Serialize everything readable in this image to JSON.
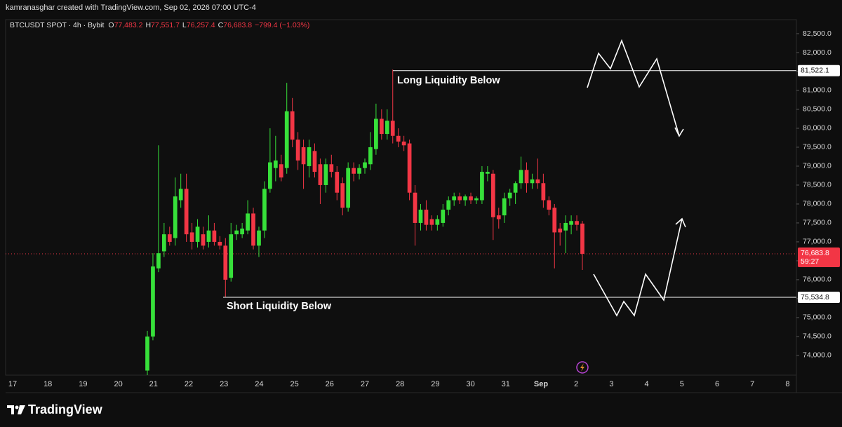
{
  "chart_data": {
    "type": "candlestick",
    "header": "kamranasghar created with TradingView.com, Sep 02, 2026 07:00 UTC-4",
    "symbol": "BTCUSDT SPOT · 4h · Bybit",
    "ohlc_legend": [
      {
        "key": "O",
        "text": "77,483.2"
      },
      {
        "key": "H",
        "text": "77,551.7"
      },
      {
        "key": "L",
        "text": "76,257.4"
      },
      {
        "key": "C",
        "text": "76,683.8"
      }
    ],
    "change": "−799.4 (−1.03%)",
    "up_color": "#37e03a",
    "down_color": "#f23645",
    "open": [
      73600,
      74500,
      76300,
      76750,
      77200,
      77100,
      78100,
      78400,
      77250,
      77000,
      77200,
      77000,
      77300,
      77000,
      76900,
      76050,
      77200,
      77200,
      77300,
      77750,
      76900,
      77300,
      78400,
      78950,
      79050,
      78950,
      80450,
      79700,
      79500,
      79000,
      79400,
      79050,
      78500,
      79050,
      78850,
      78550,
      77900,
      78950,
      78800,
      78950,
      79050,
      79450,
      80250,
      79850,
      80200,
      79800,
      79650,
      79600,
      78300,
      77500,
      77850,
      77600,
      77450,
      77500,
      77850,
      78100,
      78200,
      78100,
      78200,
      78100,
      78100,
      78800,
      78800,
      77700,
      77700,
      78150,
      78300,
      78550,
      78900,
      78550,
      78650,
      78550,
      78100,
      77900,
      77350,
      77300,
      77450,
      77550,
      77483.2
    ],
    "high": [
      74650,
      76700,
      79550,
      77500,
      77400,
      78700,
      78800,
      78800,
      77500,
      77600,
      77400,
      77700,
      77500,
      77150,
      77100,
      77500,
      77450,
      77500,
      78100,
      77900,
      77400,
      78600,
      80000,
      79800,
      79300,
      81200,
      80800,
      79900,
      79700,
      79700,
      79600,
      79200,
      79200,
      79300,
      79000,
      78700,
      79100,
      79100,
      79050,
      79200,
      79900,
      80650,
      80500,
      80500,
      81550,
      80000,
      79800,
      79700,
      78500,
      78000,
      78100,
      77700,
      77700,
      78000,
      78200,
      78300,
      78300,
      78250,
      78300,
      78200,
      79000,
      79000,
      78900,
      77900,
      78300,
      78400,
      78600,
      79250,
      79100,
      78800,
      79200,
      78800,
      78200,
      78000,
      77500,
      77700,
      77700,
      77700,
      77551.7
    ],
    "low": [
      73400,
      74400,
      76200,
      76600,
      76900,
      76900,
      77900,
      77000,
      76800,
      76850,
      76800,
      76850,
      76900,
      76800,
      75550,
      75950,
      77050,
      77100,
      77200,
      76800,
      76600,
      77100,
      78300,
      78600,
      78600,
      78800,
      79500,
      78900,
      78400,
      78700,
      78700,
      78000,
      78300,
      78700,
      78100,
      77700,
      77800,
      78600,
      78650,
      78800,
      78900,
      79300,
      79700,
      79700,
      79600,
      79500,
      79400,
      78100,
      76900,
      77300,
      77300,
      77300,
      77300,
      77400,
      77700,
      77950,
      78000,
      77950,
      78000,
      78000,
      78000,
      78600,
      77050,
      77350,
      77500,
      77950,
      78000,
      78400,
      78300,
      78400,
      78400,
      77900,
      77700,
      76300,
      76900,
      76700,
      77200,
      77300,
      76257.4
    ],
    "close": [
      74500,
      76350,
      76700,
      77200,
      77000,
      78200,
      78400,
      77200,
      77000,
      77400,
      76900,
      77300,
      77000,
      76900,
      76000,
      77200,
      77300,
      77350,
      77750,
      76900,
      77300,
      78400,
      79100,
      79150,
      78700,
      80450,
      79700,
      79150,
      79050,
      79500,
      78850,
      78500,
      79050,
      78850,
      78300,
      77900,
      78950,
      78800,
      78950,
      79100,
      79500,
      80250,
      79850,
      80200,
      79800,
      79650,
      79550,
      78300,
      77500,
      77850,
      77450,
      77450,
      77600,
      77850,
      78100,
      78200,
      78100,
      78200,
      78100,
      78150,
      78850,
      78850,
      77650,
      77600,
      78150,
      78300,
      78550,
      78900,
      78550,
      78650,
      78550,
      78100,
      77850,
      77250,
      77250,
      77500,
      77550,
      77450,
      76683.8
    ],
    "ylim": [
      73480,
      82870
    ],
    "yticks": [
      {
        "value": 74000,
        "label": "74,000.0"
      },
      {
        "value": 74500,
        "label": "74,500.0"
      },
      {
        "value": 75000,
        "label": "75,000.0"
      },
      {
        "value": 75500,
        "label": "75,500.0"
      },
      {
        "value": 76000,
        "label": "76,000.0"
      },
      {
        "value": 76500,
        "label": "76,500.0"
      },
      {
        "value": 77000,
        "label": "77,000.0"
      },
      {
        "value": 77500,
        "label": "77,500.0"
      },
      {
        "value": 78000,
        "label": "78,000.0"
      },
      {
        "value": 78500,
        "label": "78,500.0"
      },
      {
        "value": 79000,
        "label": "79,000.0"
      },
      {
        "value": 79500,
        "label": "79,500.0"
      },
      {
        "value": 80000,
        "label": "80,000.0"
      },
      {
        "value": 80500,
        "label": "80,500.0"
      },
      {
        "value": 81000,
        "label": "81,000.0"
      },
      {
        "value": 81500,
        "label": "81,500.0"
      },
      {
        "value": 82000,
        "label": "82,000.0"
      },
      {
        "value": 82500,
        "label": "82,500.0"
      }
    ],
    "xticks": [
      "17",
      "18",
      "19",
      "20",
      "21",
      "22",
      "23",
      "24",
      "25",
      "26",
      "27",
      "28",
      "29",
      "30",
      "31",
      "Sep",
      "2",
      "3",
      "4",
      "5",
      "6",
      "7",
      "8"
    ],
    "levels": [
      {
        "value": 81522.1,
        "label": "81,522.1",
        "text": "Long Liquidity Below"
      },
      {
        "value": 75534.8,
        "label": "75,534.8",
        "text": "Short Liquidity Below"
      }
    ],
    "last_price": {
      "value": 76683.8,
      "label": "76,683.8",
      "countdown": "59:27"
    },
    "brand": "TradingView"
  }
}
